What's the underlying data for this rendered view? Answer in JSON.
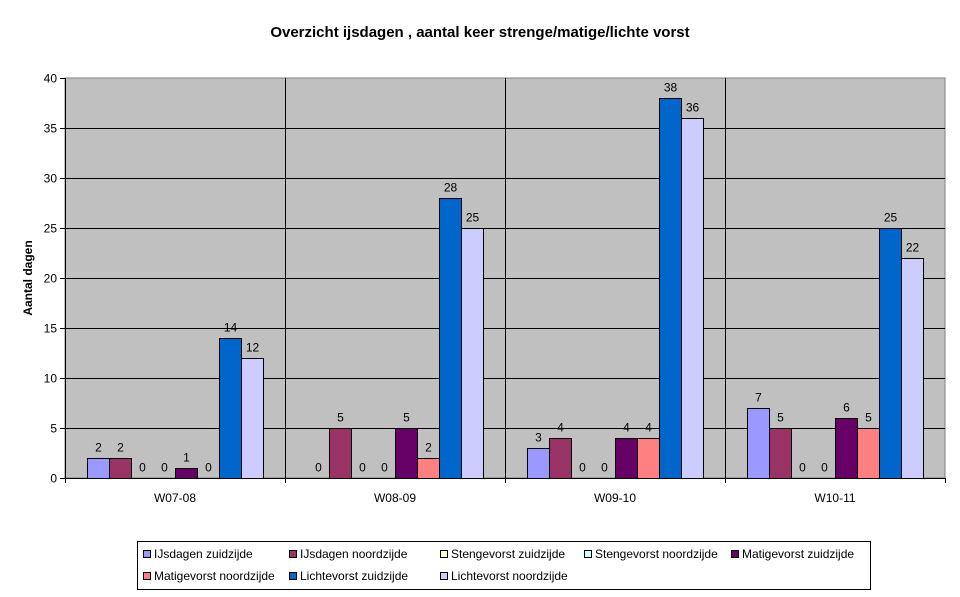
{
  "chart_data": {
    "type": "bar",
    "title": "Overzicht ijsdagen , aantal keer strenge/matige/lichte vorst",
    "xlabel": "",
    "ylabel": "Aantal dagen",
    "ylim": [
      0,
      40
    ],
    "yticks": [
      0,
      5,
      10,
      15,
      20,
      25,
      30,
      35,
      40
    ],
    "grid": true,
    "legend_position": "bottom",
    "plot_background": "#c0c0c0",
    "categories": [
      "W07-08",
      "W08-09",
      "W09-10",
      "W10-11"
    ],
    "series": [
      {
        "name": "IJsdagen zuidzijde",
        "color": "#9999ff",
        "values": [
          2,
          0,
          3,
          7
        ]
      },
      {
        "name": "IJsdagen noordzijde",
        "color": "#993366",
        "values": [
          2,
          5,
          4,
          5
        ]
      },
      {
        "name": "Stengevorst zuidzijde",
        "color": "#ffffcc",
        "values": [
          0,
          0,
          0,
          0
        ]
      },
      {
        "name": "Stengevorst noordzijde",
        "color": "#ccffff",
        "values": [
          0,
          0,
          0,
          0
        ]
      },
      {
        "name": "Matigevorst zuidzijde",
        "color": "#660066",
        "values": [
          1,
          5,
          4,
          6
        ]
      },
      {
        "name": "Matigevorst noordzijde",
        "color": "#ff8080",
        "values": [
          0,
          2,
          4,
          5
        ]
      },
      {
        "name": "Lichtevorst zuidzijde",
        "color": "#0066cc",
        "values": [
          14,
          28,
          38,
          25
        ]
      },
      {
        "name": "Lichtevorst noordzijde",
        "color": "#ccccff",
        "values": [
          12,
          25,
          36,
          22
        ]
      }
    ]
  }
}
